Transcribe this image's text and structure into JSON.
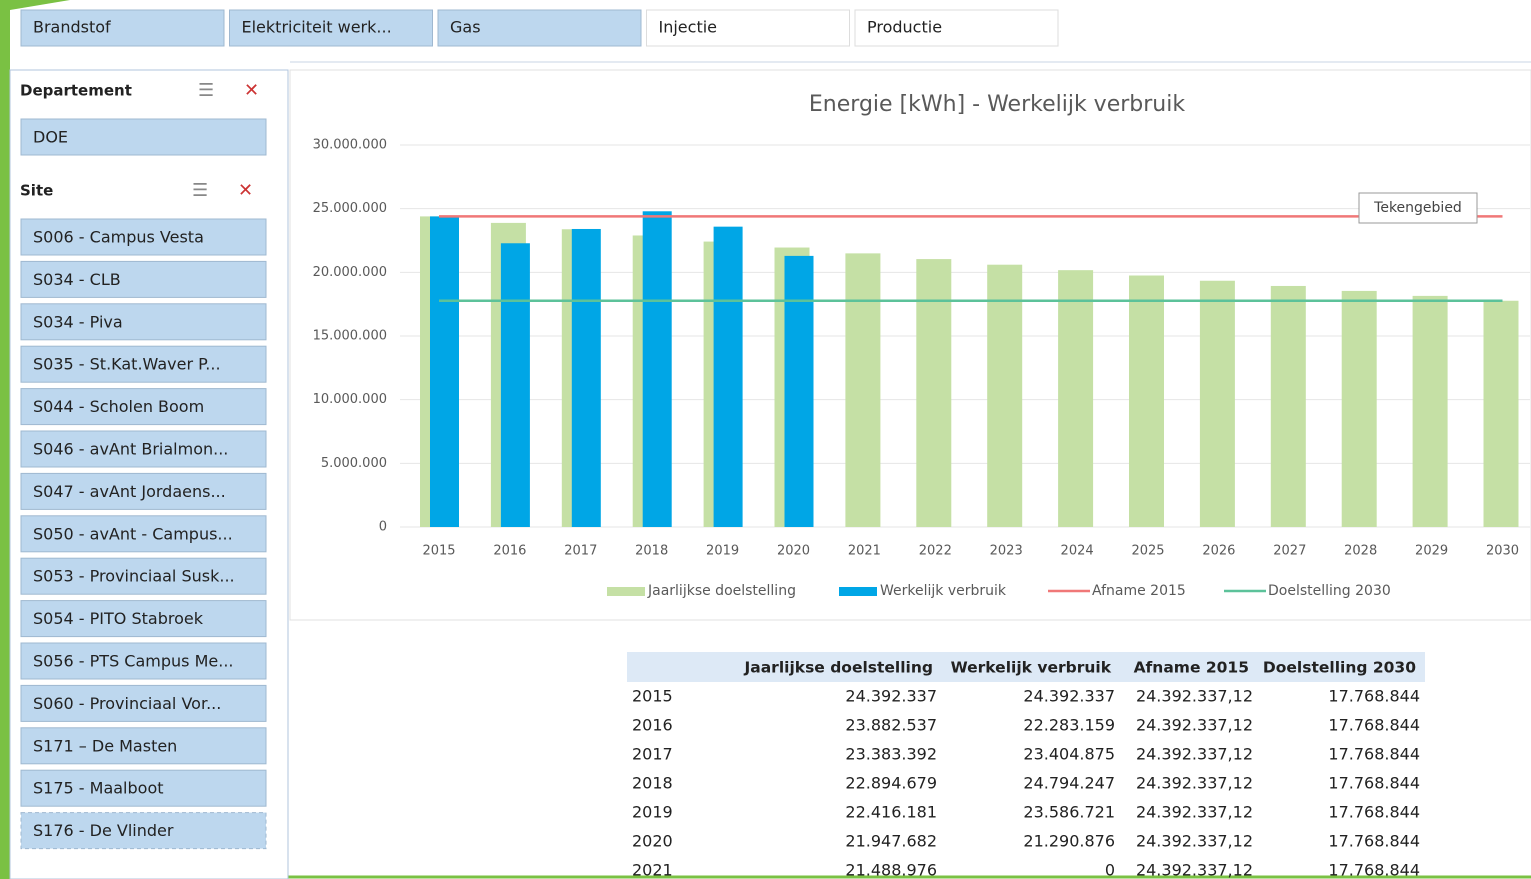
{
  "tabs": [
    "Brandstof",
    "Elektriciteit werk...",
    "Gas",
    "Injectie",
    "Productie"
  ],
  "slicers": [
    {
      "title": "Departement",
      "items": [
        "DOE"
      ]
    },
    {
      "title": "Site",
      "items": [
        "S006 - Campus Vesta",
        "S034 - CLB",
        "S034 - Piva",
        "S035 - St.Kat.Waver P...",
        "S044 - Scholen Boom",
        "S046 - avAnt Brialmon...",
        "S047 - avAnt Jordaens...",
        "S050 - avAnt - Campus...",
        "S053 - Provinciaal Susk...",
        "S054 - PITO Stabroek",
        "S056 - PTS Campus Me...",
        "S060 - Provinciaal Vor...",
        "S171 – De Masten",
        "S175 - Maalboot",
        "S176 - De Vlinder"
      ]
    }
  ],
  "chart_data": {
    "type": "bar",
    "title": "Energie [kWh] - Werkelijk verbruik",
    "tooltip": "Tekengebied",
    "categories": [
      "2015",
      "2016",
      "2017",
      "2018",
      "2019",
      "2020",
      "2021",
      "2022",
      "2023",
      "2024",
      "2025",
      "2026",
      "2027",
      "2028",
      "2029",
      "2030"
    ],
    "series": [
      {
        "name": "Jaarlijkse doelstelling",
        "type": "bar",
        "color": "#c5e0a5",
        "values": [
          24392337,
          23882537,
          23383392,
          22894679,
          22416181,
          21947682,
          21488976,
          21040000,
          20600000,
          20170000,
          19750000,
          19340000,
          18930000,
          18540000,
          18150000,
          17768844
        ]
      },
      {
        "name": "Werkelijk verbruik",
        "type": "bar",
        "color": "#00a6e6",
        "values": [
          24392337,
          22283159,
          23404875,
          24794247,
          23586721,
          21290876,
          0,
          0,
          0,
          0,
          0,
          0,
          0,
          0,
          0,
          0
        ]
      },
      {
        "name": "Afname 2015",
        "type": "line",
        "color": "#f07878",
        "values": [
          24392337.12,
          24392337.12,
          24392337.12,
          24392337.12,
          24392337.12,
          24392337.12,
          24392337.12,
          24392337.12,
          24392337.12,
          24392337.12,
          24392337.12,
          24392337.12,
          24392337.12,
          24392337.12,
          24392337.12,
          24392337.12
        ]
      },
      {
        "name": "Doelstelling 2030",
        "type": "line",
        "color": "#5cc29a",
        "values": [
          17768844,
          17768844,
          17768844,
          17768844,
          17768844,
          17768844,
          17768844,
          17768844,
          17768844,
          17768844,
          17768844,
          17768844,
          17768844,
          17768844,
          17768844,
          17768844
        ]
      }
    ],
    "ylim": [
      0,
      30000000
    ],
    "yticks": [
      0,
      {
        "value": 5000000,
        "label": "5.000.000"
      },
      {
        "value": 10000000,
        "label": "10.000.000"
      },
      {
        "value": 15000000,
        "label": "15.000.000"
      },
      {
        "value": 20000000,
        "label": "20.000.000"
      },
      {
        "value": 25000000,
        "label": "25.000.000"
      },
      {
        "value": 30000000,
        "label": "30.000.000"
      }
    ],
    "grid": true
  },
  "table": {
    "header": [
      "Jaarlijkse doelstelling",
      "Werkelijk verbruik",
      "Afname 2015",
      "Doelstelling 2030"
    ],
    "rows": [
      [
        "2015",
        "24.392.337",
        "24.392.337",
        "24.392.337,12",
        "17.768.844"
      ],
      [
        "2016",
        "23.882.537",
        "22.283.159",
        "24.392.337,12",
        "17.768.844"
      ],
      [
        "2017",
        "23.383.392",
        "23.404.875",
        "24.392.337,12",
        "17.768.844"
      ],
      [
        "2018",
        "22.894.679",
        "24.794.247",
        "24.392.337,12",
        "17.768.844"
      ],
      [
        "2019",
        "22.416.181",
        "23.586.721",
        "24.392.337,12",
        "17.768.844"
      ],
      [
        "2020",
        "21.947.682",
        "21.290.876",
        "24.392.337,12",
        "17.768.844"
      ],
      [
        "2021",
        "21.488.976",
        "0",
        "24.392.337,12",
        "17.768.844"
      ]
    ]
  }
}
